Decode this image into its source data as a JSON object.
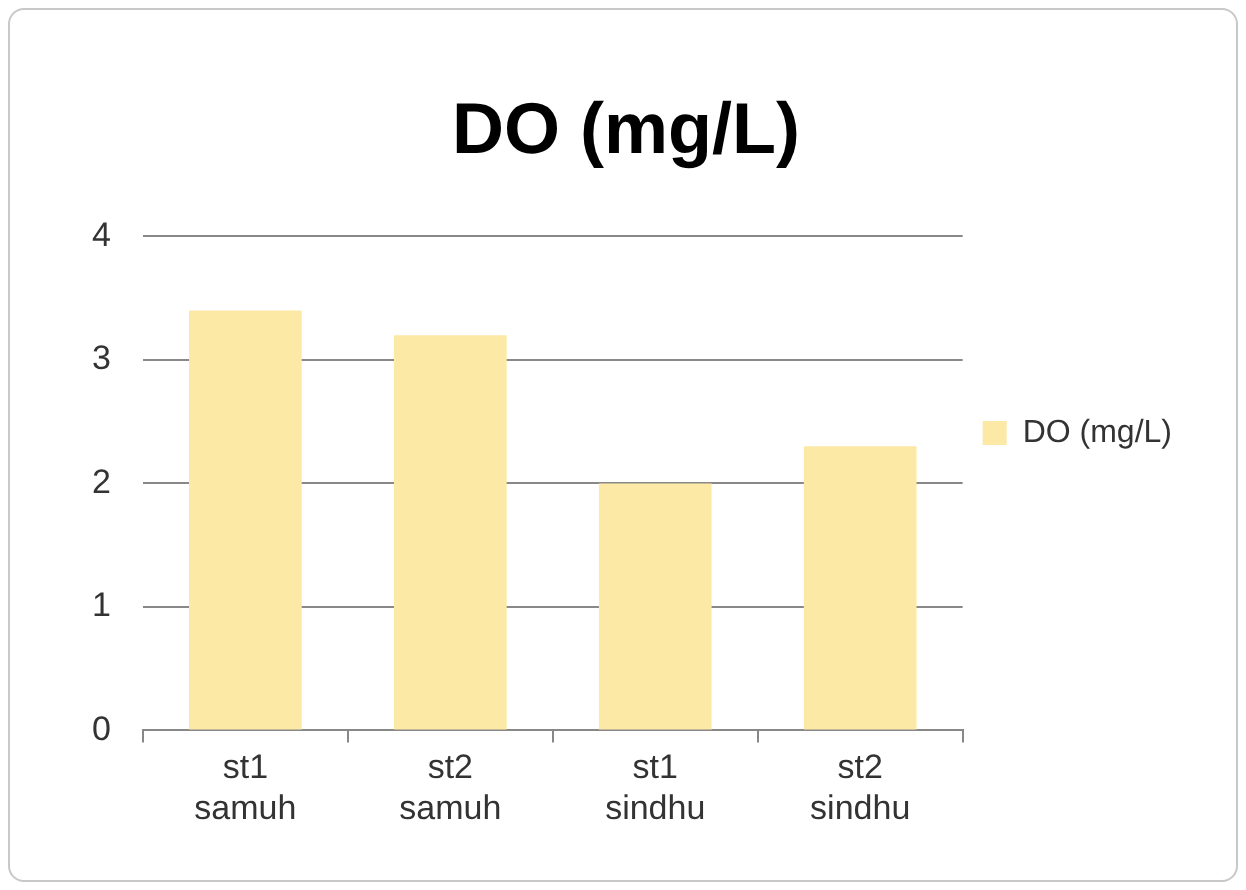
{
  "chart_data": {
    "type": "bar",
    "title": "DO (mg/L)",
    "categories": [
      "st1 samuh",
      "st2 samuh",
      "st1 sindhu",
      "st2 sindhu"
    ],
    "series": [
      {
        "name": "DO (mg/L)",
        "color": "#fde9a6",
        "values": [
          3.4,
          3.2,
          2.0,
          2.3
        ]
      }
    ],
    "ylim": [
      0,
      4
    ],
    "yticks": [
      0,
      1,
      2,
      3,
      4
    ],
    "grid": "y",
    "legend": "right"
  }
}
